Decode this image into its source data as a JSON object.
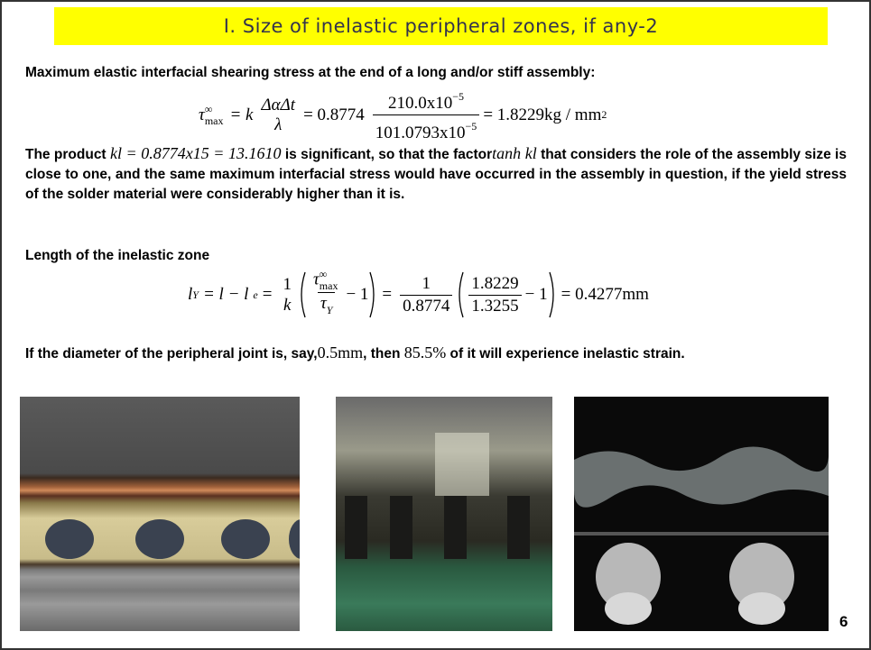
{
  "title": "I. Size of inelastic peripheral zones, if any-2",
  "paragraph_1": "Maximum elastic interfacial shearing stress at the end of a long and/or stiff assembly:",
  "formula_1": {
    "tau": "τ",
    "tau_sup": "∞",
    "tau_sub": "max",
    "eq_1": "= k",
    "frac_1_num": "ΔαΔt",
    "frac_1_den": "λ",
    "eq_2": "= 0.8774",
    "frac_2_num": "210.0x10",
    "frac_2_num_exp": "−5",
    "frac_2_den": "101.0793x10",
    "frac_2_den_exp": "−5",
    "result": "= 1.8229kg / mm",
    "result_exp": "2"
  },
  "paragraph_2": {
    "part_1": "The product",
    "math_1": "kl = 0.8774x15 = 13.1610",
    "part_2": "is significant, so that the factor",
    "math_2": "tanh kl",
    "part_3": "that considers the role of the assembly size is close to one, and the same maximum interfacial stress would have occurred in the assembly in question, if the yield stress of the solder material were considerably higher than it is."
  },
  "heading_2": "Length of the inelastic zone",
  "formula_2": {
    "l": "l",
    "l_sub": "Y",
    "eq_1": "= l − l",
    "le_sub": "e",
    "eq_2": "=",
    "frac_1_num": "1",
    "frac_1_den": "k",
    "tau": "τ",
    "tau_sup": "∞",
    "tau_sub": "max",
    "tau_y": "τ",
    "tau_y_sub": "Y",
    "minus_1": "− 1",
    "eq_3": "=",
    "frac_3_num": "1",
    "frac_3_den": "0.8774",
    "frac_4_num": "1.8229",
    "frac_4_den": "1.3255",
    "minus_2": "− 1",
    "result": "= 0.4277mm"
  },
  "paragraph_3": {
    "part_1": "If the diameter of the peripheral joint is, say,",
    "math_1": "0.5mm",
    "part_2": ", then",
    "math_2": "85.5%",
    "part_3": "of it will experience inelastic strain."
  },
  "page_number": "6"
}
